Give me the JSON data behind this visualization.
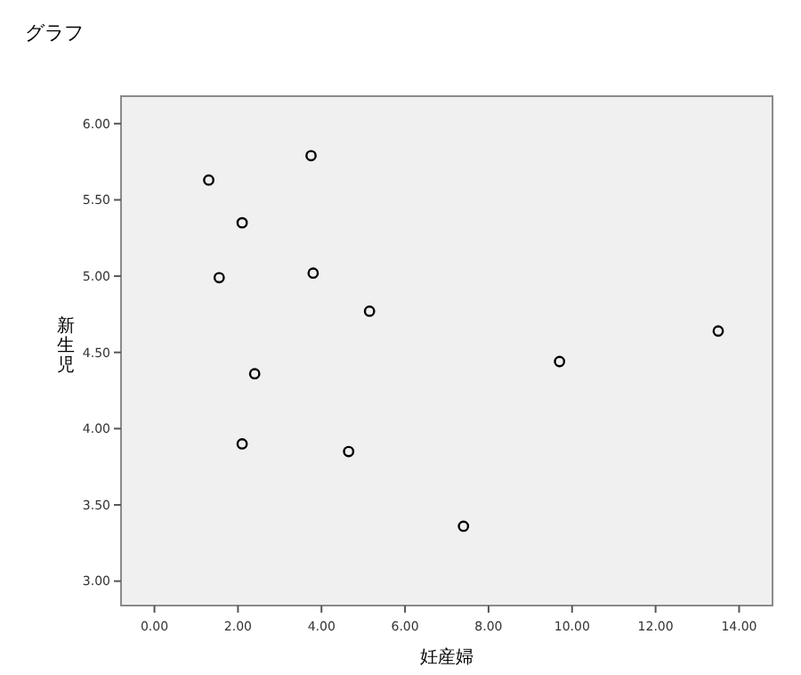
{
  "chart_data": {
    "type": "scatter",
    "title": "グラフ",
    "xlabel": "妊産婦",
    "ylabel": "新生児",
    "x": [
      1.3,
      3.75,
      2.1,
      1.55,
      3.8,
      5.15,
      2.4,
      2.1,
      4.65,
      7.4,
      9.7,
      13.5
    ],
    "values": [
      5.63,
      5.79,
      5.35,
      4.99,
      5.02,
      4.77,
      4.36,
      3.9,
      3.85,
      3.36,
      4.44,
      4.64
    ],
    "color": "#000000",
    "marker": "circle",
    "xlim": [
      -0.8,
      14.8
    ],
    "ylim": [
      2.84,
      6.18
    ],
    "xticks": [
      {
        "value": 0,
        "label": "0.00"
      },
      {
        "value": 2,
        "label": "2.00"
      },
      {
        "value": 4,
        "label": "4.00"
      },
      {
        "value": 6,
        "label": "6.00"
      },
      {
        "value": 8,
        "label": "8.00"
      },
      {
        "value": 10,
        "label": "10.00"
      },
      {
        "value": 12,
        "label": "12.00"
      },
      {
        "value": 14,
        "label": "14.00"
      }
    ],
    "yticks": [
      {
        "value": 3,
        "label": "3.00"
      },
      {
        "value": 3.5,
        "label": "3.50"
      },
      {
        "value": 4,
        "label": "4.00"
      },
      {
        "value": 4.5,
        "label": "4.50"
      },
      {
        "value": 5,
        "label": "5.00"
      },
      {
        "value": 5.5,
        "label": "5.50"
      },
      {
        "value": 6,
        "label": "6.00"
      }
    ],
    "grid": false
  }
}
